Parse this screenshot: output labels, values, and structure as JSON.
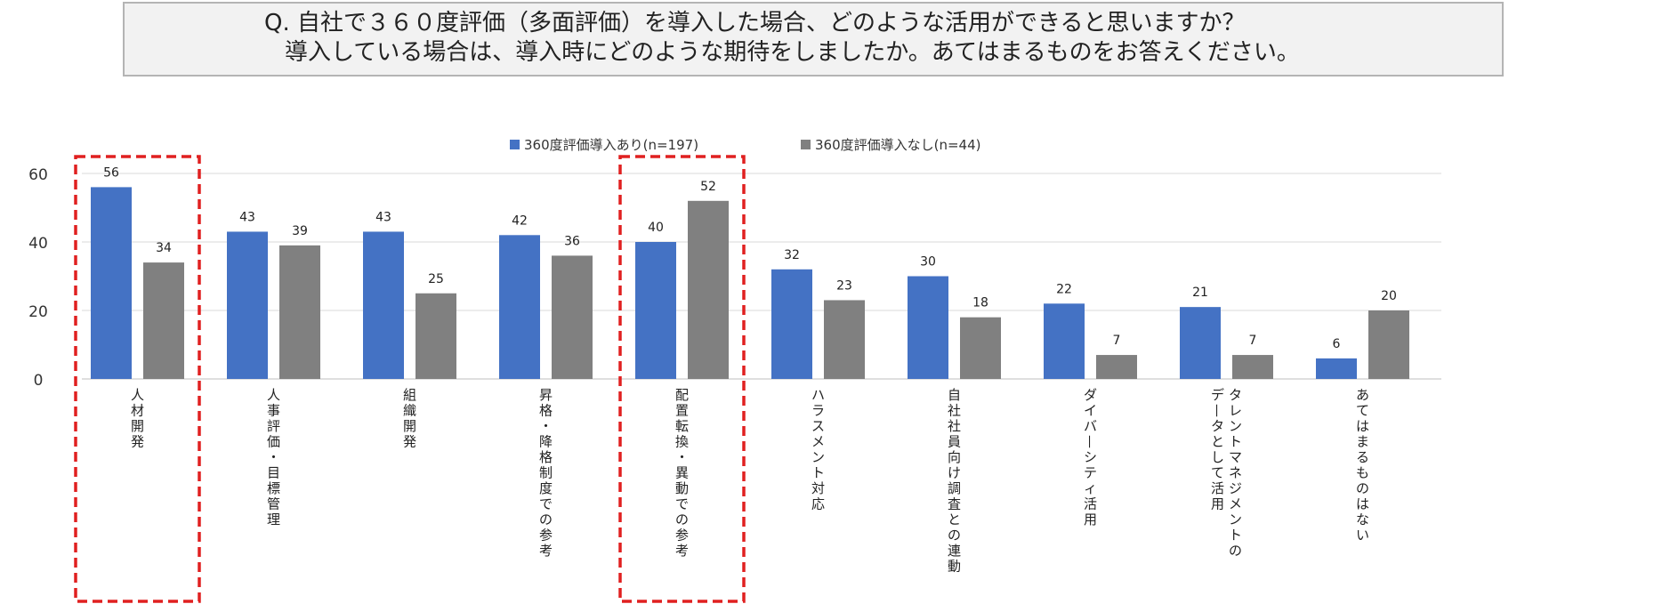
{
  "question": {
    "line1": "Q. 自社で３６０度評価（多面評価）を導入した場合、どのような活用ができると思いますか？",
    "line2": "導入している場合は、導入時にどのような期待をしましたか。あてはまるものをお答えください。"
  },
  "chart_data": {
    "type": "bar",
    "title": "",
    "xlabel": "",
    "ylabel": "",
    "ylim": [
      0,
      60
    ],
    "yticks": [
      0,
      20,
      40,
      60
    ],
    "grid": true,
    "legend_position": "top-center",
    "categories": [
      "人材開発",
      "人事評価・目標管理",
      "組織開発",
      "昇格・降格制度での参考",
      "配置転換・異動での参考",
      "ハラスメント対応",
      "自社社員向け調査との連動",
      "ダイバーシティ活用",
      "タレントマネジメントのデータとして活用",
      "あてはまるものはない"
    ],
    "category_lines": [
      [
        "人材開発"
      ],
      [
        "人事評価・目標管理"
      ],
      [
        "組織開発"
      ],
      [
        "昇格・降格制度での参考"
      ],
      [
        "配置転換・異動での参考"
      ],
      [
        "ハラスメント対応"
      ],
      [
        "自社社員向け調査との連動"
      ],
      [
        "ダイバーシティ活用"
      ],
      [
        "タレントマネジメントの",
        "データとして活用"
      ],
      [
        "あてはまるものはない"
      ]
    ],
    "series": [
      {
        "name": "360度評価導入あり(n=197)",
        "color": "#4472c4",
        "values": [
          56,
          43,
          43,
          42,
          40,
          32,
          30,
          22,
          21,
          6
        ]
      },
      {
        "name": "360度評価導入なし(n=44)",
        "color": "#808080",
        "values": [
          34,
          39,
          25,
          36,
          52,
          23,
          18,
          7,
          7,
          20
        ]
      }
    ],
    "highlighted_categories": [
      0,
      4
    ],
    "highlight_color": "#e02020"
  }
}
